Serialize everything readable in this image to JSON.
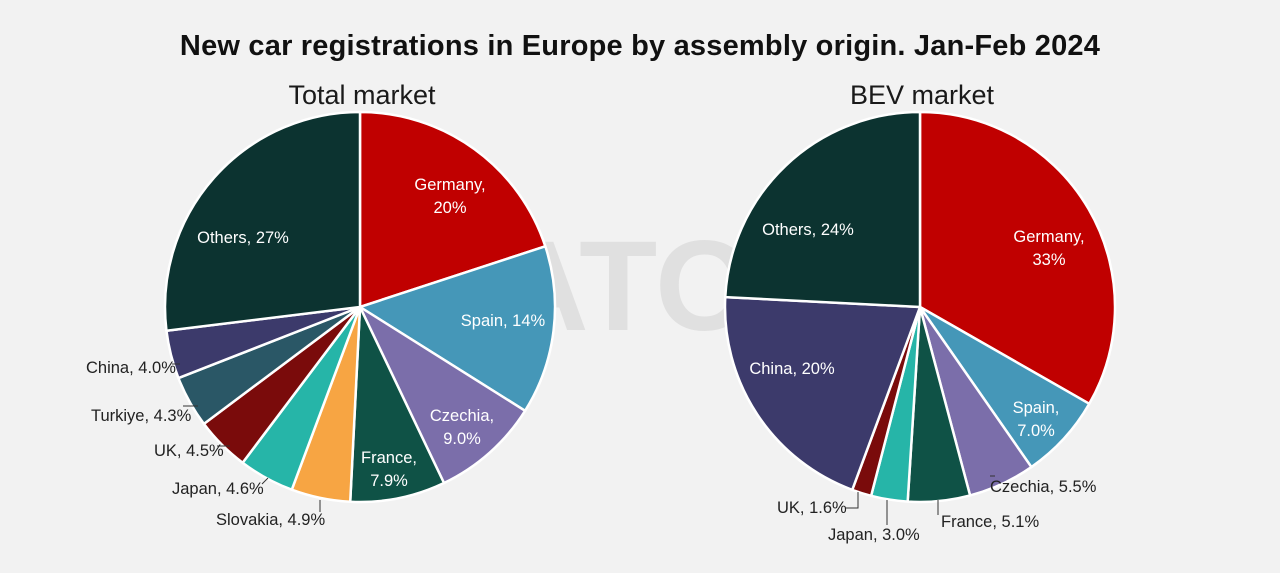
{
  "title": "New car registrations in Europe by assembly origin. Jan-Feb 2024",
  "watermark": "JATO",
  "chart_data": [
    {
      "type": "pie",
      "title": "Total market",
      "unit": "%",
      "slices": [
        {
          "label": "Germany",
          "display": "Germany, 20%",
          "value": 20,
          "color": "#c00000"
        },
        {
          "label": "Spain",
          "display": "Spain, 14%",
          "value": 14,
          "color": "#4597b8"
        },
        {
          "label": "Czechia",
          "display": "Czechia, 9.0%",
          "value": 9.0,
          "color": "#7b6eaa"
        },
        {
          "label": "France",
          "display": "France, 7.9%",
          "value": 7.9,
          "color": "#0f5246"
        },
        {
          "label": "Slovakia",
          "display": "Slovakia, 4.9%",
          "value": 4.9,
          "color": "#f7a543"
        },
        {
          "label": "Japan",
          "display": "Japan, 4.6%",
          "value": 4.6,
          "color": "#26b5a8"
        },
        {
          "label": "UK",
          "display": "UK, 4.5%",
          "value": 4.5,
          "color": "#7a0b0b"
        },
        {
          "label": "Turkiye",
          "display": "Turkiye, 4.3%",
          "value": 4.3,
          "color": "#2a5766"
        },
        {
          "label": "China",
          "display": "China, 4.0%",
          "value": 4.0,
          "color": "#3c3a6b"
        },
        {
          "label": "Others",
          "display": "Others, 27%",
          "value": 27,
          "color": "#0c3330"
        }
      ]
    },
    {
      "type": "pie",
      "title": "BEV market",
      "unit": "%",
      "slices": [
        {
          "label": "Germany",
          "display": "Germany, 33%",
          "value": 33,
          "color": "#c00000"
        },
        {
          "label": "Spain",
          "display": "Spain, 7.0%",
          "value": 7.0,
          "color": "#4597b8"
        },
        {
          "label": "Czechia",
          "display": "Czechia, 5.5%",
          "value": 5.5,
          "color": "#7b6eaa"
        },
        {
          "label": "France",
          "display": "France, 5.1%",
          "value": 5.1,
          "color": "#0f5246"
        },
        {
          "label": "Japan",
          "display": "Japan, 3.0%",
          "value": 3.0,
          "color": "#26b5a8"
        },
        {
          "label": "UK",
          "display": "UK, 1.6%",
          "value": 1.6,
          "color": "#7a0b0b"
        },
        {
          "label": "China",
          "display": "China, 20%",
          "value": 20,
          "color": "#3c3a6b"
        },
        {
          "label": "Others",
          "display": "Others, 24%",
          "value": 24,
          "color": "#0c3330"
        }
      ]
    }
  ]
}
